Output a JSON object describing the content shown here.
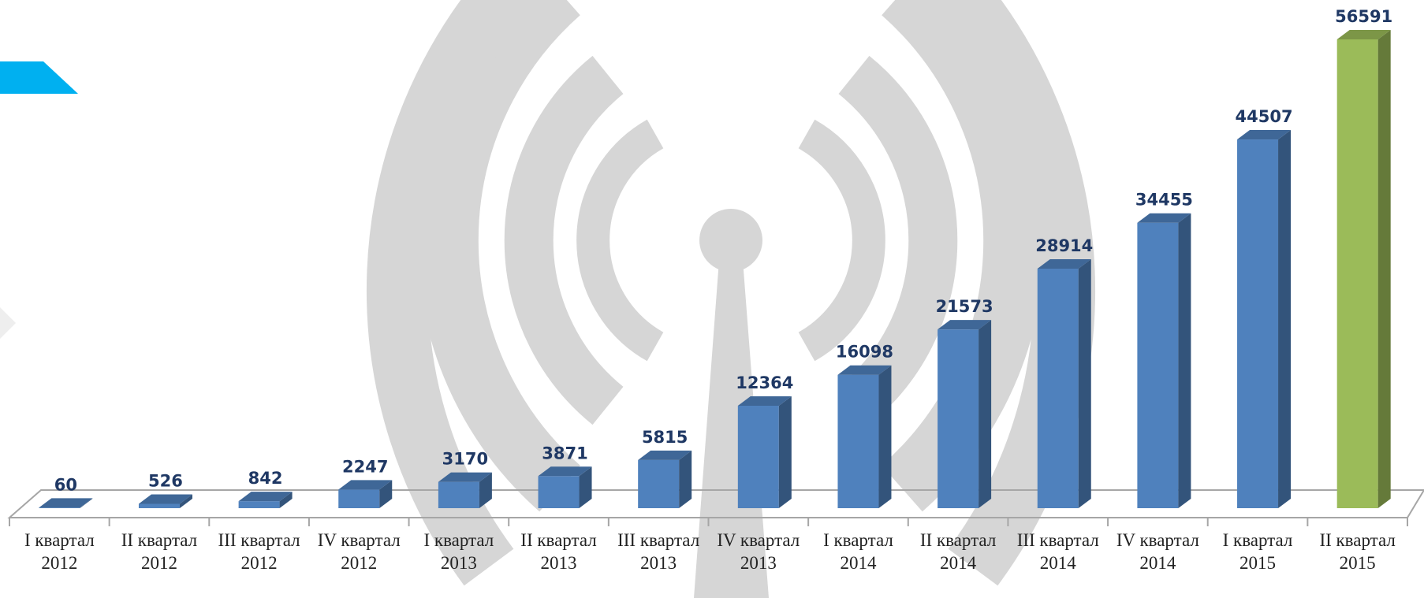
{
  "chart_data": {
    "type": "bar3d",
    "categories": [
      "I квартал 2012",
      "II квартал 2012",
      "III квартал 2012",
      "IV квартал 2012",
      "I квартал 2013",
      "II квартал 2013",
      "III квартал 2013",
      "IV квартал 2013",
      "I квартал 2014",
      "II квартал 2014",
      "III квартал 2014",
      "IV квартал 2014",
      "I квартал 2015",
      "II квартал 2015"
    ],
    "values": [
      60,
      526,
      842,
      2247,
      3170,
      3871,
      5815,
      12364,
      16098,
      21573,
      28914,
      34455,
      44507,
      56591
    ],
    "colors": [
      "#4f81bd",
      "#4f81bd",
      "#4f81bd",
      "#4f81bd",
      "#4f81bd",
      "#4f81bd",
      "#4f81bd",
      "#4f81bd",
      "#4f81bd",
      "#4f81bd",
      "#4f81bd",
      "#4f81bd",
      "#4f81bd",
      "#9bbb59"
    ]
  }
}
